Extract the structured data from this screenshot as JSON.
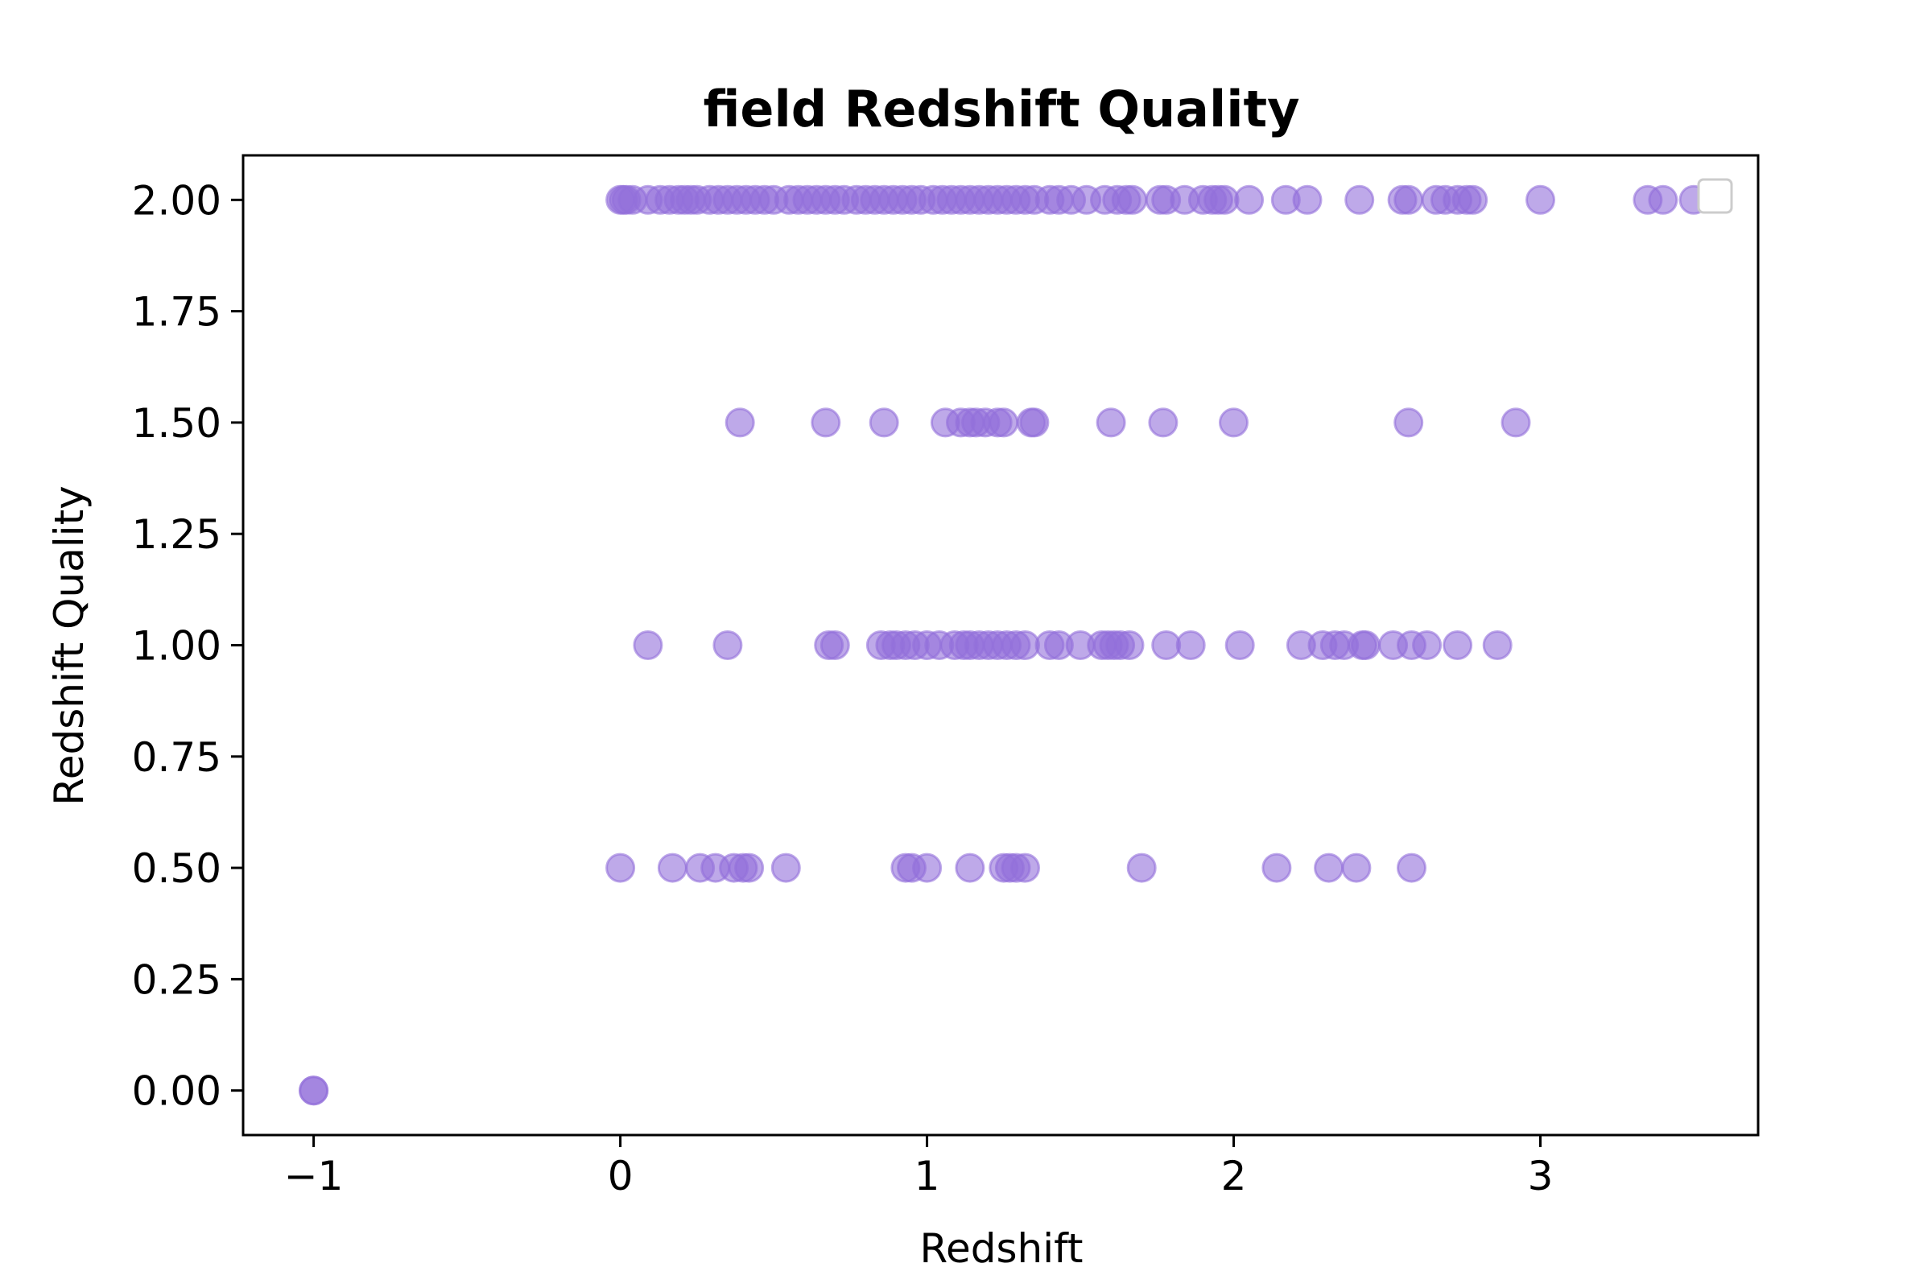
{
  "chart_data": {
    "type": "scatter",
    "title": "field Redshift Quality",
    "xlabel": "Redshift",
    "ylabel": "Redshift Quality",
    "xlim": [
      -1.23,
      3.71
    ],
    "ylim": [
      -0.1,
      2.1
    ],
    "xticks": [
      -1,
      0,
      1,
      2,
      3
    ],
    "xtick_labels": [
      "−1",
      "0",
      "1",
      "2",
      "3"
    ],
    "yticks": [
      0,
      0.25,
      0.5,
      0.75,
      1.0,
      1.25,
      1.5,
      1.75,
      2.0
    ],
    "ytick_labels": [
      "0.00",
      "0.25",
      "0.50",
      "0.75",
      "1.00",
      "1.25",
      "1.50",
      "1.75",
      "2.00"
    ],
    "grid": false,
    "legend": "upper right (empty)",
    "marker_color": "#9370db",
    "marker_alpha": 0.6,
    "series": [
      {
        "x": [
          -1.0,
          -1.0,
          0.0,
          0.01,
          0.02,
          0.04,
          0.09,
          0.13,
          0.16,
          0.19,
          0.21,
          0.23,
          0.25,
          0.29,
          0.32,
          0.35,
          0.38,
          0.41,
          0.44,
          0.47,
          0.5,
          0.55,
          0.58,
          0.61,
          0.64,
          0.67,
          0.7,
          0.73,
          0.77,
          0.8,
          0.83,
          0.86,
          0.89,
          0.92,
          0.95,
          0.98,
          1.02,
          1.05,
          1.08,
          1.11,
          1.14,
          1.17,
          1.2,
          1.23,
          1.26,
          1.29,
          1.32,
          1.35,
          1.4,
          1.43,
          1.47,
          1.52,
          1.58,
          1.62,
          1.65,
          1.67,
          1.76,
          1.78,
          1.84,
          1.9,
          1.93,
          1.95,
          1.97,
          2.05,
          2.17,
          2.24,
          2.41,
          2.55,
          2.57,
          2.66,
          2.69,
          2.73,
          2.76,
          2.78,
          3.0,
          3.35,
          3.4,
          3.5,
          0.39,
          0.67,
          0.86,
          1.06,
          1.11,
          1.14,
          1.16,
          1.19,
          1.23,
          1.25,
          1.34,
          1.35,
          1.6,
          1.77,
          2.0,
          2.57,
          2.92,
          0.09,
          0.35,
          0.68,
          0.7,
          0.85,
          0.88,
          0.9,
          0.93,
          0.96,
          1.0,
          1.04,
          1.09,
          1.12,
          1.14,
          1.17,
          1.2,
          1.23,
          1.26,
          1.29,
          1.32,
          1.4,
          1.43,
          1.5,
          1.57,
          1.59,
          1.61,
          1.63,
          1.66,
          1.78,
          1.86,
          2.02,
          2.22,
          2.29,
          2.33,
          2.36,
          2.42,
          2.43,
          2.52,
          2.58,
          2.63,
          2.73,
          2.86,
          0.0,
          0.17,
          0.26,
          0.31,
          0.37,
          0.4,
          0.42,
          0.54,
          0.93,
          0.95,
          1.0,
          1.14,
          1.25,
          1.27,
          1.29,
          1.32,
          1.7,
          2.14,
          2.31,
          2.4,
          2.58
        ],
        "y": [
          0.0,
          0.0,
          2.0,
          2.0,
          2.0,
          2.0,
          2.0,
          2.0,
          2.0,
          2.0,
          2.0,
          2.0,
          2.0,
          2.0,
          2.0,
          2.0,
          2.0,
          2.0,
          2.0,
          2.0,
          2.0,
          2.0,
          2.0,
          2.0,
          2.0,
          2.0,
          2.0,
          2.0,
          2.0,
          2.0,
          2.0,
          2.0,
          2.0,
          2.0,
          2.0,
          2.0,
          2.0,
          2.0,
          2.0,
          2.0,
          2.0,
          2.0,
          2.0,
          2.0,
          2.0,
          2.0,
          2.0,
          2.0,
          2.0,
          2.0,
          2.0,
          2.0,
          2.0,
          2.0,
          2.0,
          2.0,
          2.0,
          2.0,
          2.0,
          2.0,
          2.0,
          2.0,
          2.0,
          2.0,
          2.0,
          2.0,
          2.0,
          2.0,
          2.0,
          2.0,
          2.0,
          2.0,
          2.0,
          2.0,
          2.0,
          2.0,
          2.0,
          2.0,
          1.5,
          1.5,
          1.5,
          1.5,
          1.5,
          1.5,
          1.5,
          1.5,
          1.5,
          1.5,
          1.5,
          1.5,
          1.5,
          1.5,
          1.5,
          1.5,
          1.5,
          1.0,
          1.0,
          1.0,
          1.0,
          1.0,
          1.0,
          1.0,
          1.0,
          1.0,
          1.0,
          1.0,
          1.0,
          1.0,
          1.0,
          1.0,
          1.0,
          1.0,
          1.0,
          1.0,
          1.0,
          1.0,
          1.0,
          1.0,
          1.0,
          1.0,
          1.0,
          1.0,
          1.0,
          1.0,
          1.0,
          1.0,
          1.0,
          1.0,
          1.0,
          1.0,
          1.0,
          1.0,
          1.0,
          1.0,
          1.0,
          1.0,
          1.0,
          0.5,
          0.5,
          0.5,
          0.5,
          0.5,
          0.5,
          0.5,
          0.5,
          0.5,
          0.5,
          0.5,
          0.5,
          0.5,
          0.5,
          0.5,
          0.5,
          0.5,
          0.5,
          0.5,
          0.5,
          0.5
        ]
      }
    ]
  }
}
